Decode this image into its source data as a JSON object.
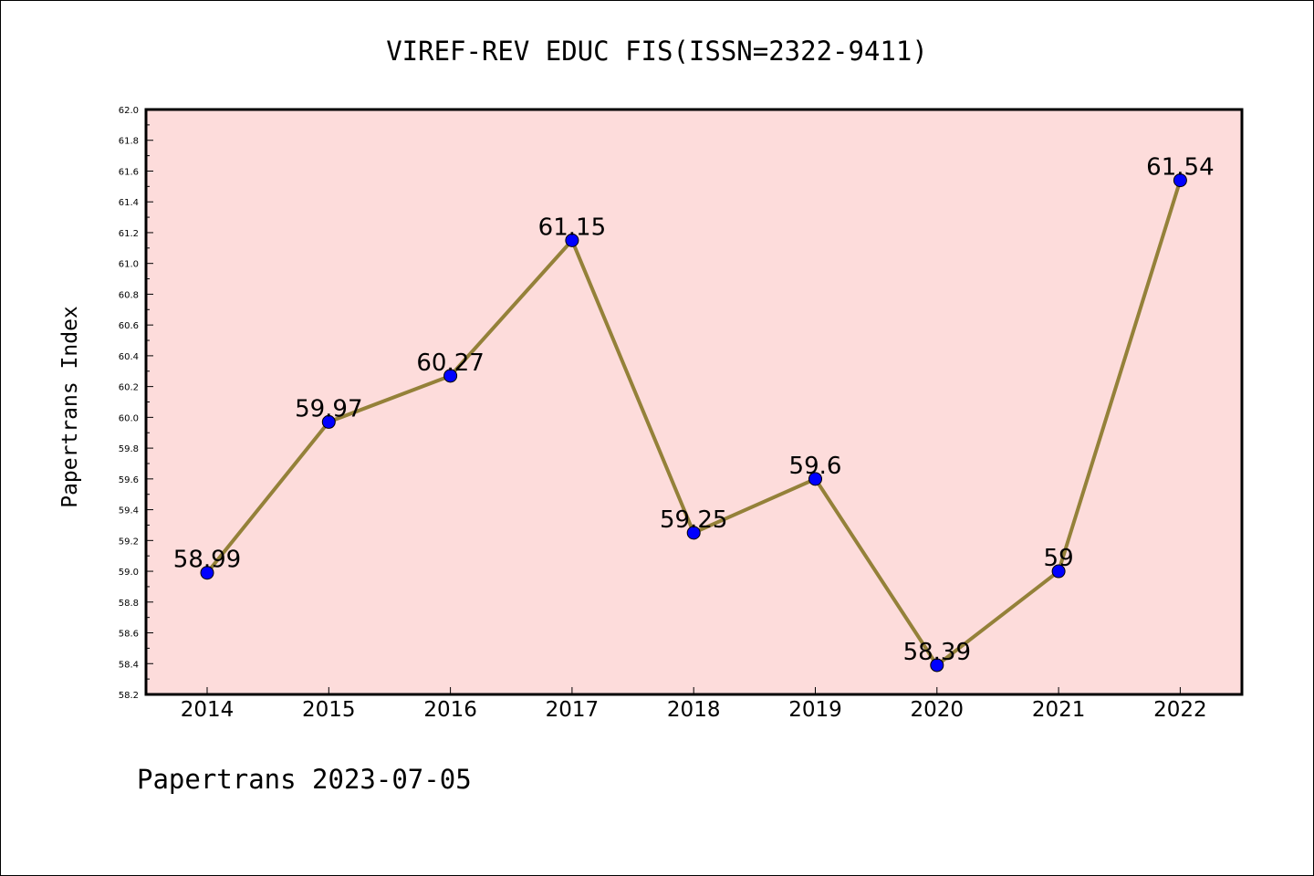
{
  "chart_data": {
    "type": "line",
    "title": "VIREF-REV EDUC FIS(ISSN=2322-9411)",
    "xlabel": "",
    "ylabel": "Papertrans Index",
    "categories": [
      "2014",
      "2015",
      "2016",
      "2017",
      "2018",
      "2019",
      "2020",
      "2021",
      "2022"
    ],
    "values": [
      58.99,
      59.97,
      60.27,
      61.15,
      59.25,
      59.6,
      58.39,
      59,
      61.54
    ],
    "data_labels": [
      "58.99",
      "59.97",
      "60.27",
      "61.15",
      "59.25",
      "59.6",
      "58.39",
      "59",
      "61.54"
    ],
    "ylim": [
      58.2,
      62.0
    ],
    "yticks": [
      "58.2",
      "58.4",
      "58.6",
      "58.8",
      "59.0",
      "59.2",
      "59.4",
      "59.6",
      "59.8",
      "60.0",
      "60.2",
      "60.4",
      "60.6",
      "60.8",
      "61.0",
      "61.2",
      "61.4",
      "61.6",
      "61.8",
      "62.0"
    ],
    "grid": false,
    "legend": "none",
    "colors": {
      "plot_background": "#fddcdb",
      "line": "#948139",
      "marker": "#0000ff",
      "axes": "#000000"
    }
  },
  "footer": "Papertrans 2023-07-05"
}
